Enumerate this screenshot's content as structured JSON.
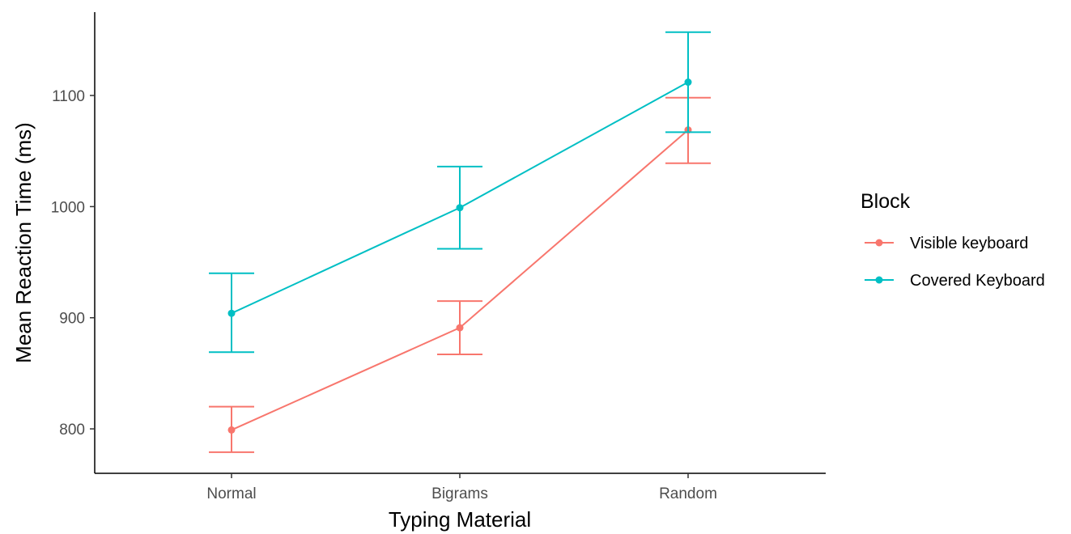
{
  "chart_data": {
    "type": "line",
    "xlabel": "Typing Material",
    "ylabel": "Mean Reaction Time (ms)",
    "categories": [
      "Normal",
      "Bigrams",
      "Random"
    ],
    "ylim": [
      760,
      1175
    ],
    "yticks": [
      800,
      900,
      1000,
      1100
    ],
    "grid": false,
    "error_bars": true,
    "legend": {
      "title": "Block",
      "placement": "right"
    },
    "series": [
      {
        "name": "Visible keyboard",
        "color": "#F8766D",
        "values": [
          799,
          891,
          1069
        ],
        "lower": [
          779,
          867,
          1039
        ],
        "upper": [
          820,
          915,
          1098
        ]
      },
      {
        "name": "Covered Keyboard",
        "color": "#00BFC4",
        "values": [
          904,
          999,
          1112
        ],
        "lower": [
          869,
          962,
          1067
        ],
        "upper": [
          940,
          1036,
          1157
        ]
      }
    ]
  }
}
